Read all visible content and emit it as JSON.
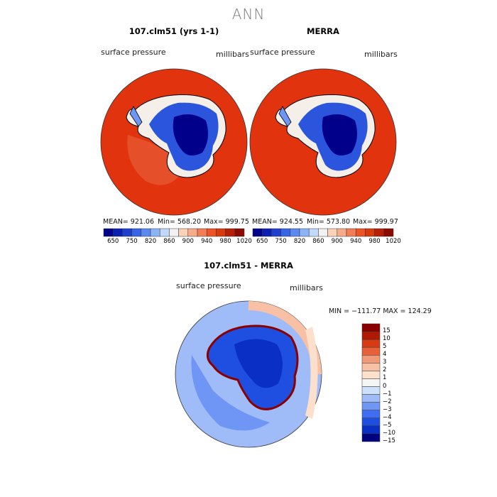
{
  "page_title": "ANN",
  "colors": {
    "abs_levels": [
      "#00008b",
      "#0a1fb0",
      "#1f3fd0",
      "#3865e6",
      "#5a89f0",
      "#8db3f7",
      "#c3d9fb",
      "#f2f2f2",
      "#fcd2b8",
      "#f8ab88",
      "#f37d55",
      "#ec5428",
      "#d93a0c",
      "#b51f06",
      "#8b0a02"
    ],
    "diff_levels": [
      "#00007f",
      "#0a2fc4",
      "#1f4fe0",
      "#3f6ff0",
      "#6f95f5",
      "#9fbcf8",
      "#cde0fc",
      "#f5f5f5",
      "#fde0cc",
      "#f8c0a4",
      "#f29a78",
      "#e8603a",
      "#d83a14",
      "#b01a05",
      "#8a0000"
    ],
    "ocean_fill": "#e0330e",
    "ocean_fill_model": "#e5502a"
  },
  "chart_data": [
    {
      "type": "heatmap",
      "title": "107.clm51 (yrs 1-1)",
      "field_label": "surface pressure",
      "units": "millibars",
      "stats": {
        "mean": "MEAN= 921.06",
        "min": "Min= 568.20",
        "max": "Max= 999.75"
      },
      "colorbar_ticks": [
        "650",
        "750",
        "820",
        "860",
        "900",
        "940",
        "980",
        "1020"
      ]
    },
    {
      "type": "heatmap",
      "title": "MERRA",
      "field_label": "surface pressure",
      "units": "millibars",
      "stats": {
        "mean": "MEAN= 924.55",
        "min": "Min= 573.80",
        "max": "Max= 999.97"
      },
      "colorbar_ticks": [
        "650",
        "750",
        "820",
        "860",
        "900",
        "940",
        "980",
        "1020"
      ]
    },
    {
      "type": "heatmap",
      "title": "107.clm51 - MERRA",
      "field_label": "surface pressure",
      "units": "millibars",
      "stats": {
        "min_max": "MIN = −111.77 MAX = 124.29"
      },
      "colorbar_ticks": [
        "15",
        "10",
        "5",
        "4",
        "3",
        "2",
        "1",
        "0",
        "−1",
        "−2",
        "−3",
        "−4",
        "−5",
        "−10",
        "−15"
      ]
    }
  ]
}
